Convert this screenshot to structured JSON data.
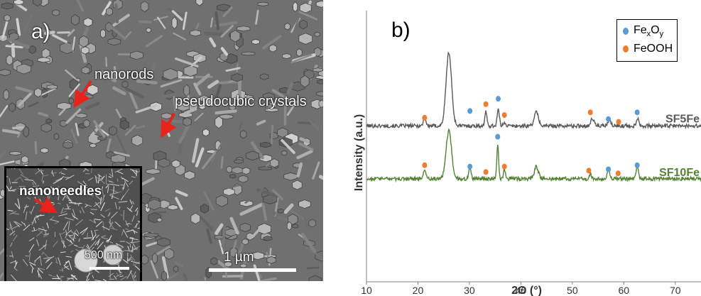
{
  "panel_a": {
    "label": "a)",
    "annotations": {
      "nanorods": "nanorods",
      "pseudocubic": "pseudocubic crystals",
      "nanoneedles": "nanoneedles"
    },
    "scale_main": "1 µm",
    "scale_inset": "500 nm",
    "colors": {
      "arrow": "#e8231c",
      "text": "#ffffff"
    }
  },
  "panel_b": {
    "label": "b)",
    "legend": [
      {
        "name_base": "Fe",
        "sub1": "x",
        "mid": "O",
        "sub2": "y",
        "color": "#5b9bd5"
      },
      {
        "name_base": "FeOOH",
        "color": "#ed7d31"
      }
    ]
  },
  "chart_data": {
    "type": "line",
    "xlabel": "2Θ (°)",
    "ylabel": "Intensity (a.u.)",
    "xlim": [
      10,
      75
    ],
    "xticks": [
      10,
      20,
      30,
      40,
      50,
      60,
      70
    ],
    "ylim": [
      0,
      1
    ],
    "grid": false,
    "legend_position": "top-right",
    "series": [
      {
        "name": "SF5Fe",
        "color": "#595959",
        "baseline": 0.575,
        "peaks": [
          {
            "x": 21.3,
            "h": 0.03,
            "w": 0.35
          },
          {
            "x": 26.0,
            "h": 0.27,
            "w": 0.75
          },
          {
            "x": 33.2,
            "h": 0.05,
            "w": 0.3
          },
          {
            "x": 35.6,
            "h": 0.06,
            "w": 0.3
          },
          {
            "x": 36.8,
            "h": 0.015,
            "w": 0.3
          },
          {
            "x": 43.0,
            "h": 0.05,
            "w": 0.6
          },
          {
            "x": 53.9,
            "h": 0.025,
            "w": 0.5
          },
          {
            "x": 57.2,
            "h": 0.02,
            "w": 0.4
          },
          {
            "x": 62.7,
            "h": 0.03,
            "w": 0.35
          }
        ],
        "markers": [
          {
            "x": 21.3,
            "phase": "FeOOH",
            "y": 0.605
          },
          {
            "x": 30.1,
            "phase": "FexOy",
            "y": 0.63
          },
          {
            "x": 33.2,
            "phase": "FeOOH",
            "y": 0.655
          },
          {
            "x": 35.6,
            "phase": "FexOy",
            "y": 0.675
          },
          {
            "x": 36.8,
            "phase": "FeOOH",
            "y": 0.615
          },
          {
            "x": 53.5,
            "phase": "FeOOH",
            "y": 0.625
          },
          {
            "x": 57.0,
            "phase": "FexOy",
            "y": 0.6
          },
          {
            "x": 59.0,
            "phase": "FeOOH",
            "y": 0.59
          },
          {
            "x": 62.6,
            "phase": "FexOy",
            "y": 0.625
          }
        ]
      },
      {
        "name": "SF10Fe",
        "color": "#548235",
        "baseline": 0.38,
        "peaks": [
          {
            "x": 21.3,
            "h": 0.035,
            "w": 0.35
          },
          {
            "x": 26.0,
            "h": 0.175,
            "w": 0.75
          },
          {
            "x": 30.1,
            "h": 0.04,
            "w": 0.3
          },
          {
            "x": 35.5,
            "h": 0.13,
            "w": 0.25
          },
          {
            "x": 36.8,
            "h": 0.03,
            "w": 0.3
          },
          {
            "x": 43.0,
            "h": 0.045,
            "w": 0.55
          },
          {
            "x": 53.5,
            "h": 0.015,
            "w": 0.4
          },
          {
            "x": 57.0,
            "h": 0.04,
            "w": 0.3
          },
          {
            "x": 62.6,
            "h": 0.05,
            "w": 0.3
          }
        ],
        "markers": [
          {
            "x": 21.3,
            "phase": "FeOOH",
            "y": 0.43
          },
          {
            "x": 30.1,
            "phase": "FexOy",
            "y": 0.425
          },
          {
            "x": 33.2,
            "phase": "FeOOH",
            "y": 0.405
          },
          {
            "x": 35.5,
            "phase": "FexOy",
            "y": 0.535
          },
          {
            "x": 36.8,
            "phase": "FeOOH",
            "y": 0.425
          },
          {
            "x": 53.2,
            "phase": "FeOOH",
            "y": 0.41
          },
          {
            "x": 57.0,
            "phase": "FexOy",
            "y": 0.415
          },
          {
            "x": 58.9,
            "phase": "FeOOH",
            "y": 0.4
          },
          {
            "x": 62.6,
            "phase": "FexOy",
            "y": 0.43
          }
        ]
      }
    ]
  }
}
